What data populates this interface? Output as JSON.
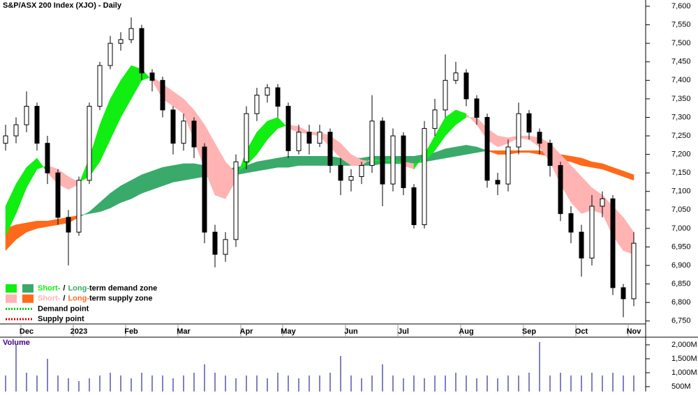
{
  "chart_data": [
    {
      "type": "candlestick",
      "title": "S&P/ASX 200 Index (XJO) - Daily",
      "categories": [
        null,
        null,
        "Dec",
        null,
        null,
        null,
        null,
        "2023",
        null,
        null,
        null,
        null,
        "Feb",
        null,
        null,
        null,
        null,
        "Mar",
        null,
        null,
        null,
        null,
        null,
        "Apr",
        null,
        null,
        null,
        "May",
        null,
        null,
        null,
        null,
        null,
        "Jun",
        null,
        null,
        null,
        null,
        "Jul",
        null,
        null,
        null,
        null,
        null,
        "Aug",
        null,
        null,
        null,
        null,
        null,
        "Sep",
        null,
        null,
        null,
        null,
        "Oct",
        null,
        null,
        null,
        null,
        "Nov"
      ],
      "open": [
        7230,
        7250,
        7280,
        7330,
        7230,
        7150,
        7030,
        6990,
        7130,
        7330,
        7440,
        7500,
        7510,
        7540,
        7420,
        7400,
        7320,
        7230,
        7290,
        7220,
        6990,
        6930,
        6970,
        7180,
        7310,
        7360,
        7380,
        7330,
        7210,
        7260,
        7230,
        7260,
        7170,
        7130,
        7140,
        7170,
        7290,
        7120,
        7250,
        7110,
        7010,
        7270,
        7320,
        7400,
        7420,
        7350,
        7300,
        7130,
        7120,
        7220,
        7310,
        7260,
        7230,
        7170,
        7040,
        6990,
        6920,
        7060,
        7080,
        6840,
        6810
      ],
      "high": [
        7280,
        7300,
        7370,
        7340,
        7250,
        7160,
        7050,
        7140,
        7340,
        7450,
        7520,
        7530,
        7570,
        7550,
        7430,
        7410,
        7330,
        7310,
        7300,
        7230,
        7010,
        6990,
        7200,
        7330,
        7380,
        7390,
        7390,
        7340,
        7280,
        7280,
        7280,
        7270,
        7190,
        7160,
        7180,
        7360,
        7300,
        7270,
        7260,
        7120,
        7290,
        7350,
        7470,
        7450,
        7430,
        7360,
        7310,
        7150,
        7240,
        7340,
        7320,
        7270,
        7240,
        7180,
        7060,
        7010,
        7090,
        7100,
        7090,
        6850,
        6990
      ],
      "low": [
        7210,
        7230,
        7260,
        7210,
        7120,
        7010,
        6900,
        6980,
        7120,
        7320,
        7430,
        7480,
        7500,
        7400,
        7370,
        7300,
        7200,
        7210,
        7190,
        6960,
        6895,
        6910,
        6950,
        7160,
        7290,
        7340,
        7300,
        7190,
        7200,
        7200,
        7220,
        7150,
        7090,
        7100,
        7120,
        7150,
        7060,
        7100,
        7090,
        7000,
        7000,
        7250,
        7300,
        7390,
        7330,
        7280,
        7110,
        7090,
        7100,
        7200,
        7240,
        7200,
        7140,
        7020,
        6960,
        6870,
        6900,
        7030,
        6820,
        6760,
        6790
      ],
      "close": [
        7250,
        7280,
        7330,
        7230,
        7150,
        7030,
        6990,
        7130,
        7330,
        7440,
        7500,
        7510,
        7540,
        7420,
        7400,
        7320,
        7230,
        7290,
        7220,
        6990,
        6930,
        6970,
        7180,
        7310,
        7360,
        7380,
        7330,
        7210,
        7260,
        7230,
        7260,
        7170,
        7130,
        7140,
        7170,
        7290,
        7120,
        7250,
        7110,
        7010,
        7270,
        7320,
        7400,
        7420,
        7350,
        7300,
        7130,
        7120,
        7220,
        7310,
        7260,
        7230,
        7170,
        7040,
        6990,
        6920,
        7060,
        7080,
        6840,
        6810,
        6960
      ],
      "short_band": {
        "fast": [
          7060,
          7120,
          7165,
          7190,
          7150,
          7120,
          7105,
          7120,
          7190,
          7280,
          7350,
          7400,
          7440,
          7430,
          7400,
          7350,
          7330,
          7310,
          7240,
          7160,
          7090,
          7080,
          7130,
          7210,
          7260,
          7290,
          7300,
          7270,
          7260,
          7255,
          7250,
          7220,
          7190,
          7170,
          7170,
          7190,
          7180,
          7190,
          7170,
          7160,
          7200,
          7250,
          7300,
          7320,
          7310,
          7280,
          7240,
          7220,
          7230,
          7245,
          7240,
          7220,
          7180,
          7120,
          7070,
          7040,
          7050,
          7040,
          6980,
          6940,
          6930
        ],
        "slow": [
          6980,
          7040,
          7110,
          7160,
          7170,
          7160,
          7140,
          7125,
          7140,
          7180,
          7240,
          7300,
          7350,
          7400,
          7410,
          7390,
          7370,
          7350,
          7320,
          7280,
          7230,
          7180,
          7150,
          7170,
          7200,
          7240,
          7270,
          7280,
          7275,
          7260,
          7260,
          7250,
          7230,
          7200,
          7185,
          7180,
          7185,
          7180,
          7180,
          7175,
          7180,
          7210,
          7250,
          7280,
          7300,
          7300,
          7270,
          7250,
          7245,
          7250,
          7250,
          7245,
          7230,
          7200,
          7170,
          7140,
          7110,
          7090,
          7060,
          7030,
          6990
        ]
      },
      "long_band": {
        "fast": [
          6940,
          6970,
          6990,
          7000,
          7005,
          7010,
          7015,
          7030,
          7045,
          7070,
          7095,
          7115,
          7130,
          7145,
          7155,
          7165,
          7170,
          7175,
          7175,
          7170,
          7165,
          7160,
          7165,
          7170,
          7180,
          7185,
          7190,
          7195,
          7195,
          7195,
          7195,
          7195,
          7190,
          7190,
          7190,
          7195,
          7195,
          7195,
          7195,
          7195,
          7200,
          7205,
          7215,
          7220,
          7225,
          7220,
          7210,
          7200,
          7200,
          7205,
          7205,
          7200,
          7195,
          7185,
          7180,
          7170,
          7165,
          7160,
          7150,
          7140,
          7130
        ],
        "slow": [
          7000,
          7010,
          7015,
          7020,
          7020,
          7025,
          7030,
          7035,
          7040,
          7045,
          7055,
          7070,
          7080,
          7095,
          7105,
          7115,
          7125,
          7130,
          7135,
          7140,
          7140,
          7140,
          7145,
          7150,
          7155,
          7160,
          7165,
          7165,
          7170,
          7170,
          7170,
          7170,
          7170,
          7170,
          7170,
          7170,
          7175,
          7175,
          7175,
          7175,
          7180,
          7185,
          7190,
          7195,
          7200,
          7205,
          7210,
          7210,
          7210,
          7210,
          7210,
          7210,
          7205,
          7200,
          7195,
          7190,
          7180,
          7175,
          7165,
          7155,
          7145
        ]
      },
      "colors": {
        "short_demand": "#11ee11",
        "short_supply": "#ffb3b3",
        "long_demand": "#3aaa6a",
        "long_supply": "#ff6a1a",
        "up": "#ffffff",
        "down": "#000000"
      },
      "ylim": [
        6742,
        7617
      ],
      "yticks": [
        {
          "value": 6750,
          "label": "6,750"
        },
        {
          "value": 6800,
          "label": "6,800"
        },
        {
          "value": 6850,
          "label": "6,850"
        },
        {
          "value": 6900,
          "label": "6,900"
        },
        {
          "value": 6950,
          "label": "6,950"
        },
        {
          "value": 7000,
          "label": "7,000"
        },
        {
          "value": 7050,
          "label": "7,050"
        },
        {
          "value": 7100,
          "label": "7,100"
        },
        {
          "value": 7150,
          "label": "7,150"
        },
        {
          "value": 7200,
          "label": "7,200"
        },
        {
          "value": 7250,
          "label": "7,250"
        },
        {
          "value": 7300,
          "label": "7,300"
        },
        {
          "value": 7350,
          "label": "7,350"
        },
        {
          "value": 7400,
          "label": "7,400"
        },
        {
          "value": 7450,
          "label": "7,450"
        },
        {
          "value": 7500,
          "label": "7,500"
        },
        {
          "value": 7550,
          "label": "7,550"
        },
        {
          "value": 7600,
          "label": "7,600"
        }
      ],
      "legend": [
        {
          "parts": [
            "Short-",
            "/",
            "Long-",
            "term demand zone"
          ]
        },
        {
          "parts": [
            "Short-",
            "/",
            "Long-",
            "term supply zone"
          ]
        },
        {
          "text": "Demand point",
          "color": "#00cc00"
        },
        {
          "text": "Supply point",
          "color": "#dd0000"
        }
      ]
    },
    {
      "type": "bar",
      "title": "Volume",
      "color": "#8080c0",
      "values": [
        900,
        2000,
        1000,
        900,
        1500,
        900,
        800,
        700,
        800,
        900,
        1000,
        900,
        800,
        1000,
        900,
        900,
        800,
        900,
        1000,
        1300,
        1000,
        900,
        800,
        900,
        900,
        800,
        1000,
        900,
        800,
        900,
        900,
        1000,
        1600,
        900,
        800,
        900,
        1300,
        900,
        800,
        900,
        800,
        900,
        900,
        1000,
        900,
        800,
        900,
        800,
        900,
        900,
        1000,
        2100,
        900,
        1000,
        900,
        900,
        1000,
        900,
        1000,
        900,
        900
      ],
      "ylim": [
        325,
        2250
      ],
      "yticks": [
        {
          "value": 500,
          "label": "500M"
        },
        {
          "value": 1000,
          "label": "1,000M"
        },
        {
          "value": 1500,
          "label": "1,500M"
        },
        {
          "value": 2000,
          "label": "2,000M"
        }
      ]
    }
  ]
}
